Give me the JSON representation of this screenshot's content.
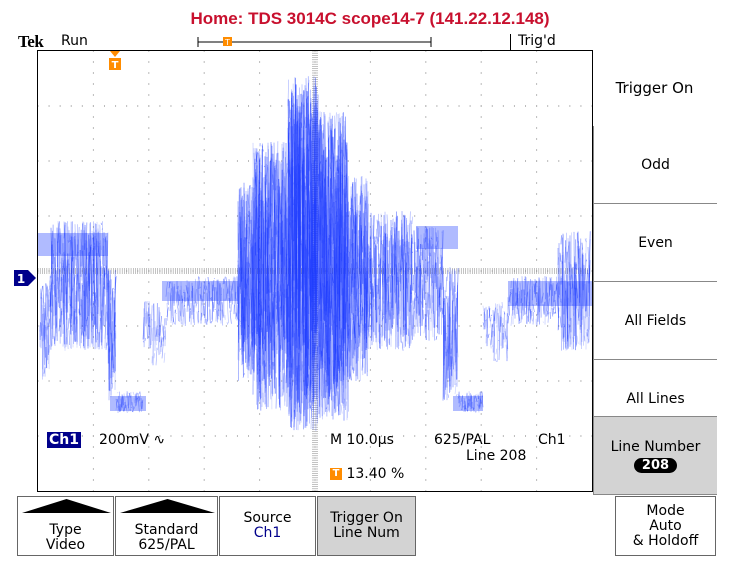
{
  "header": {
    "title": "Home:  TDS 3014C  scope14-7  (141.22.12.148)"
  },
  "status": {
    "brand": "Tek",
    "run_state": "Run",
    "trigger_state": "Trig'd"
  },
  "readouts": {
    "ch1_label": "Ch1",
    "ch1_scale": "200mV ∿",
    "timebase": "M 10.0µs",
    "standard": "625/PAL",
    "trigger_source": "Ch1",
    "line": "Line 208",
    "trigger_position": "13.40 %"
  },
  "side_menu": {
    "title": "Trigger On",
    "items": [
      {
        "label": "Odd"
      },
      {
        "label": "Even"
      },
      {
        "label": "All Fields"
      },
      {
        "label": "All Lines"
      },
      {
        "label": "Line Number",
        "value": "208",
        "selected": true
      }
    ]
  },
  "bottom_menu": {
    "type": {
      "line1": "Type",
      "line2": "Video"
    },
    "standard": {
      "line1": "Standard",
      "line2": "625/PAL"
    },
    "source": {
      "line1": "Source",
      "line2": "Ch1"
    },
    "trigger_on": {
      "line1": "Trigger On",
      "line2": "Line Num"
    },
    "mode": {
      "line1": "Mode",
      "line2": "Auto",
      "line3": "& Holdoff"
    }
  },
  "colors": {
    "trace": "#1e3cff",
    "title": "#c8102e",
    "trigger_marker": "#ff8c00",
    "channel_tag": "#00008b"
  }
}
